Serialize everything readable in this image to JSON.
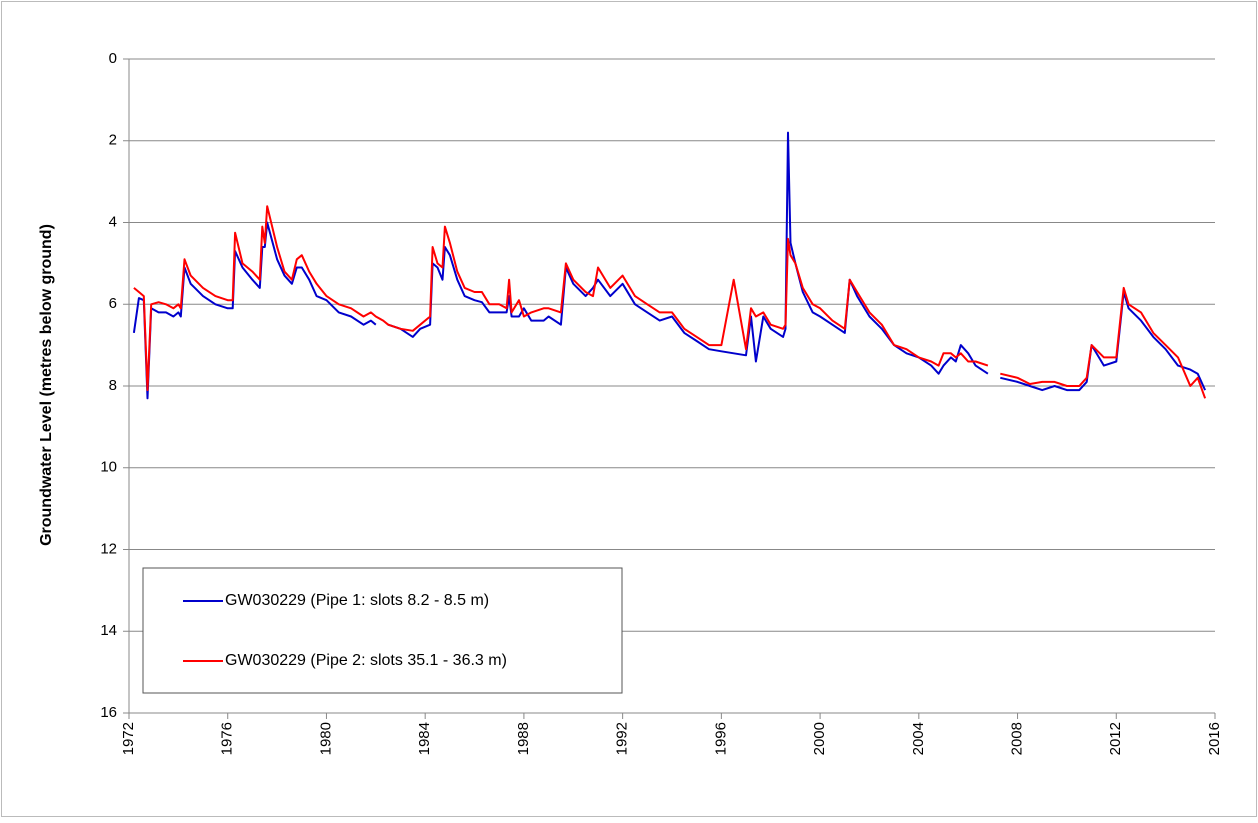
{
  "chart_data": {
    "type": "line",
    "y_label": "Groundwater Level (metres below ground)",
    "x": [
      1972.2,
      1972.4,
      1972.6,
      1972.75,
      1972.9,
      1973.2,
      1973.5,
      1973.8,
      1974.0,
      1974.1,
      1974.25,
      1974.5,
      1975.0,
      1975.5,
      1976.0,
      1976.2,
      1976.3,
      1976.6,
      1977.0,
      1977.3,
      1977.4,
      1977.5,
      1977.6,
      1978.0,
      1978.3,
      1978.6,
      1978.8,
      1979.0,
      1979.3,
      1979.6,
      1980.0,
      1980.5,
      1981.0,
      1981.5,
      1981.8,
      1982.0,
      1982.3,
      1982.5,
      1983.0,
      1983.5,
      1983.8,
      1984.2,
      1984.3,
      1984.5,
      1984.7,
      1984.8,
      1985.0,
      1985.3,
      1985.6,
      1986.0,
      1986.3,
      1986.6,
      1987.0,
      1987.3,
      1987.4,
      1987.5,
      1987.8,
      1988.0,
      1988.3,
      1988.8,
      1989.0,
      1989.5,
      1989.7,
      1990.0,
      1990.5,
      1990.8,
      1991.0,
      1991.5,
      1992.0,
      1992.5,
      1993.0,
      1993.5,
      1994.0,
      1994.5,
      1995.0,
      1995.5,
      1996.0,
      1996.5,
      1997.0,
      1997.2,
      1997.4,
      1997.7,
      1998.0,
      1998.5,
      1998.6,
      1998.7,
      1998.8,
      1999.0,
      1999.3,
      1999.7,
      2000.0,
      2000.5,
      2001.0,
      2001.2,
      2001.5,
      2002.0,
      2002.5,
      2003.0,
      2003.5,
      2004.0,
      2004.5,
      2004.8,
      2005.0,
      2005.3,
      2005.5,
      2005.7,
      2006.0,
      2006.3,
      2006.8,
      2007.0,
      2007.3,
      2008.0,
      2008.5,
      2009.0,
      2009.5,
      2010.0,
      2010.5,
      2010.8,
      2011.0,
      2011.5,
      2012.0,
      2012.3,
      2012.5,
      2013.0,
      2013.5,
      2014.0,
      2014.5,
      2015.0,
      2015.3,
      2015.6
    ],
    "series": [
      {
        "name": "GW030229 (Pipe 1: slots 8.2 - 8.5 m)",
        "color": "#0000cc",
        "values": [
          6.7,
          5.85,
          5.9,
          8.3,
          6.1,
          6.2,
          6.2,
          6.3,
          6.2,
          6.3,
          5.1,
          5.5,
          5.8,
          6.0,
          6.1,
          6.1,
          4.7,
          5.1,
          5.4,
          5.6,
          4.6,
          4.6,
          4.0,
          4.9,
          5.3,
          5.5,
          5.1,
          5.1,
          5.4,
          5.8,
          5.9,
          6.2,
          6.3,
          6.5,
          6.4,
          6.5,
          null,
          6.5,
          6.6,
          6.8,
          6.6,
          6.5,
          5.0,
          5.1,
          5.4,
          4.6,
          4.8,
          5.4,
          5.8,
          5.9,
          5.95,
          6.2,
          6.2,
          6.2,
          5.8,
          6.3,
          6.3,
          6.1,
          6.4,
          6.4,
          6.3,
          6.5,
          5.1,
          5.5,
          5.8,
          5.6,
          5.4,
          5.8,
          5.5,
          6.0,
          6.2,
          6.4,
          6.3,
          6.7,
          6.9,
          7.1,
          7.15,
          7.2,
          7.25,
          6.3,
          7.4,
          6.3,
          6.6,
          6.8,
          6.6,
          1.8,
          4.5,
          5.0,
          5.7,
          6.2,
          6.3,
          6.5,
          6.7,
          5.4,
          5.8,
          6.3,
          6.6,
          7.0,
          7.2,
          7.3,
          7.5,
          7.7,
          7.5,
          7.3,
          7.4,
          7.0,
          7.2,
          7.5,
          7.7,
          null,
          7.8,
          7.9,
          8.0,
          8.1,
          8.0,
          8.1,
          8.1,
          7.9,
          7.0,
          7.5,
          7.4,
          5.7,
          6.1,
          6.4,
          6.8,
          7.1,
          7.5,
          7.6,
          7.7,
          8.1
        ]
      },
      {
        "name": "GW030229 (Pipe 2: slots 35.1 - 36.3 m)",
        "color": "#ff0000",
        "values": [
          5.6,
          5.7,
          5.8,
          8.1,
          6.0,
          5.95,
          6.0,
          6.1,
          6.0,
          6.1,
          4.9,
          5.3,
          5.6,
          5.8,
          5.9,
          5.9,
          4.25,
          5.0,
          5.2,
          5.4,
          4.1,
          4.5,
          3.6,
          4.6,
          5.2,
          5.4,
          4.9,
          4.8,
          5.2,
          5.5,
          5.8,
          6.0,
          6.1,
          6.3,
          6.2,
          6.3,
          6.4,
          6.5,
          6.6,
          6.65,
          6.5,
          6.3,
          4.6,
          5.0,
          5.1,
          4.1,
          4.5,
          5.2,
          5.6,
          5.7,
          5.7,
          6.0,
          6.0,
          6.1,
          5.4,
          6.2,
          5.9,
          6.3,
          6.2,
          6.1,
          6.1,
          6.2,
          5.0,
          5.4,
          5.7,
          5.8,
          5.1,
          5.6,
          5.3,
          5.8,
          6.0,
          6.2,
          6.2,
          6.6,
          6.8,
          7.0,
          7.0,
          5.4,
          7.1,
          6.1,
          6.3,
          6.2,
          6.5,
          6.6,
          6.5,
          4.4,
          4.8,
          5.0,
          5.6,
          6.0,
          6.1,
          6.4,
          6.6,
          5.4,
          5.7,
          6.2,
          6.5,
          7.0,
          7.1,
          7.3,
          7.4,
          7.5,
          7.2,
          7.2,
          7.3,
          7.2,
          7.4,
          7.4,
          7.5,
          null,
          7.7,
          7.8,
          7.95,
          7.9,
          7.9,
          8.0,
          8.0,
          7.8,
          7.0,
          7.3,
          7.3,
          5.6,
          6.0,
          6.2,
          6.7,
          7.0,
          7.3,
          8.0,
          7.8,
          8.3
        ]
      }
    ],
    "xlim": [
      1972,
      2016
    ],
    "xticks": [
      1972,
      1976,
      1980,
      1984,
      1988,
      1992,
      1996,
      2000,
      2004,
      2008,
      2012,
      2016
    ],
    "ylim": [
      0,
      16
    ],
    "yticks": [
      0,
      2,
      4,
      6,
      8,
      10,
      12,
      14,
      16
    ],
    "y_inverted": true,
    "grid": true,
    "legend": "lower left"
  }
}
